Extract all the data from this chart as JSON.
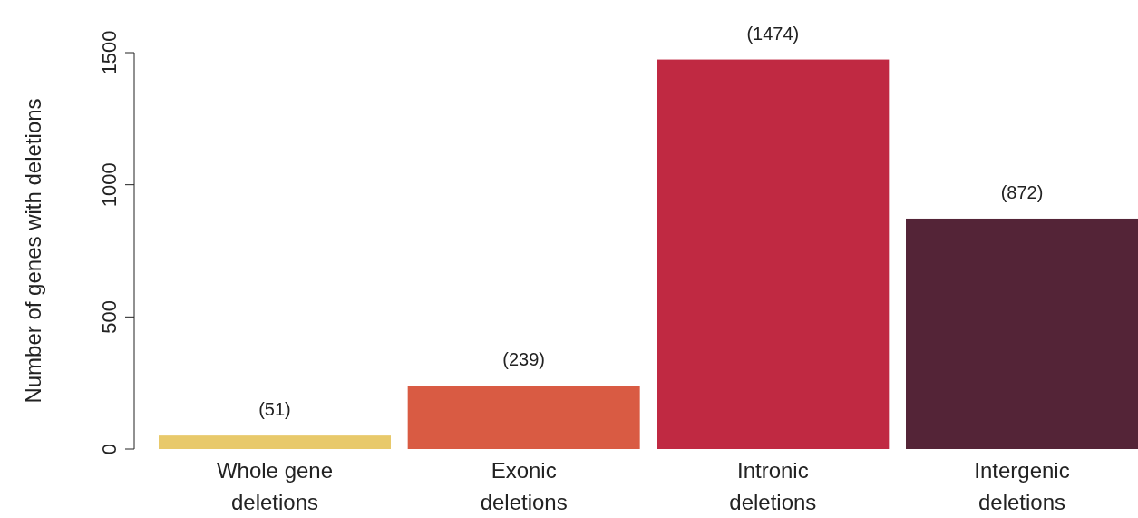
{
  "chart_data": {
    "type": "bar",
    "ylabel": "Number of genes with deletions",
    "categories": [
      "Whole gene deletions",
      "Exonic deletions",
      "Intronic deletions",
      "Intergenic deletions"
    ],
    "values": [
      51,
      239,
      1474,
      872
    ],
    "colors": [
      "#e8c96b",
      "#d95b43",
      "#c02942",
      "#542437"
    ],
    "value_labels": [
      "(51)",
      "(239)",
      "(1474)",
      "(872)"
    ],
    "ylim": [
      0,
      1500
    ],
    "yticks": [
      0,
      500,
      1000,
      1500
    ],
    "grid": false
  }
}
